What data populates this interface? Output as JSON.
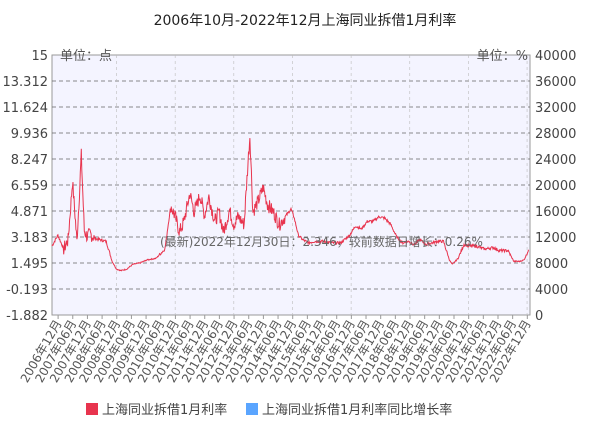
{
  "chart_data": {
    "type": "line",
    "title": "2006年10月-2022年12月上海同业拆借1月利率",
    "y_left_unit": "单位：点",
    "y_right_unit": "单位：%",
    "y_left_ticks": [
      "15",
      "13.312",
      "11.624",
      "9.936",
      "8.247",
      "6.559",
      "4.871",
      "3.183",
      "1.495",
      "-0.193",
      "-1.882"
    ],
    "y_right_ticks": [
      "40000",
      "36000",
      "32000",
      "28000",
      "24000",
      "20000",
      "16000",
      "12000",
      "8000",
      "4000",
      "0"
    ],
    "ylim_left": [
      -1.882,
      15
    ],
    "ylim_right": [
      0,
      40000
    ],
    "grid": true,
    "legend_position": "bottom",
    "annotation": "(最新)2022年12月30日：2.346，较前数据日增长：0.26%",
    "x_tick_labels": [
      "2006年12月",
      "2007年06月",
      "2007年12月",
      "2008年06月",
      "2008年12月",
      "2009年06月",
      "2009年12月",
      "2010年06月",
      "2010年12月",
      "2011年06月",
      "2011年12月",
      "2012年06月",
      "2012年12月",
      "2013年06月",
      "2013年12月",
      "2014年06月",
      "2014年12月",
      "2015年06月",
      "2015年12月",
      "2016年06月",
      "2016年12月",
      "2017年06月",
      "2017年12月",
      "2018年06月",
      "2018年12月",
      "2019年06月",
      "2019年12月",
      "2020年06月",
      "2020年12月",
      "2021年06月",
      "2021年12月",
      "2022年06月",
      "2022年12月"
    ],
    "series": [
      {
        "name": "上海同业拆借1月利率",
        "color": "#e8344e",
        "axis": "left",
        "x": [
          2006.75,
          2006.95,
          2007.15,
          2007.3,
          2007.45,
          2007.6,
          2007.75,
          2007.85,
          2007.95,
          2008.05,
          2008.2,
          2008.4,
          2008.6,
          2008.8,
          2008.95,
          2009.1,
          2009.3,
          2009.5,
          2009.75,
          2010.0,
          2010.3,
          2010.6,
          2010.8,
          2010.95,
          2011.1,
          2011.25,
          2011.45,
          2011.6,
          2011.8,
          2011.95,
          2012.1,
          2012.3,
          2012.45,
          2012.6,
          2012.8,
          2012.95,
          2013.1,
          2013.3,
          2013.45,
          2013.5,
          2013.6,
          2013.8,
          2013.95,
          2014.1,
          2014.3,
          2014.5,
          2014.7,
          2014.9,
          2015.0,
          2015.15,
          2015.3,
          2015.5,
          2015.7,
          2016.0,
          2016.3,
          2016.6,
          2016.9,
          2017.1,
          2017.3,
          2017.5,
          2017.7,
          2017.9,
          2018.1,
          2018.3,
          2018.5,
          2018.7,
          2018.9,
          2019.1,
          2019.3,
          2019.5,
          2019.7,
          2019.9,
          2020.1,
          2020.3,
          2020.4,
          2020.6,
          2020.8,
          2020.95,
          2021.2,
          2021.5,
          2021.8,
          2022.0,
          2022.3,
          2022.5,
          2022.7,
          2022.85,
          2023.0
        ],
        "values": [
          2.6,
          3.3,
          2.4,
          3.0,
          6.8,
          2.9,
          8.5,
          3.6,
          3.2,
          3.4,
          3.1,
          3.0,
          2.9,
          1.6,
          1.1,
          1.0,
          1.1,
          1.4,
          1.5,
          1.7,
          1.8,
          2.4,
          5.2,
          4.5,
          3.5,
          4.2,
          6.0,
          4.8,
          5.9,
          4.6,
          5.8,
          4.2,
          4.8,
          3.5,
          4.9,
          4.0,
          4.5,
          4.0,
          8.5,
          9.8,
          4.8,
          5.6,
          6.4,
          5.3,
          4.8,
          4.0,
          4.5,
          5.0,
          4.5,
          3.3,
          3.0,
          2.8,
          2.9,
          2.9,
          2.8,
          2.8,
          3.3,
          3.9,
          3.7,
          4.2,
          4.2,
          4.5,
          4.4,
          4.0,
          3.2,
          2.8,
          2.9,
          2.7,
          3.0,
          2.7,
          2.8,
          2.9,
          2.9,
          1.7,
          1.4,
          1.8,
          2.7,
          2.6,
          2.6,
          2.4,
          2.5,
          2.3,
          2.3,
          1.6,
          1.6,
          1.7,
          2.35
        ]
      },
      {
        "name": "上海同业拆借1月利率同比增长率",
        "color": "#5aa5ff",
        "axis": "right",
        "values": []
      }
    ]
  }
}
